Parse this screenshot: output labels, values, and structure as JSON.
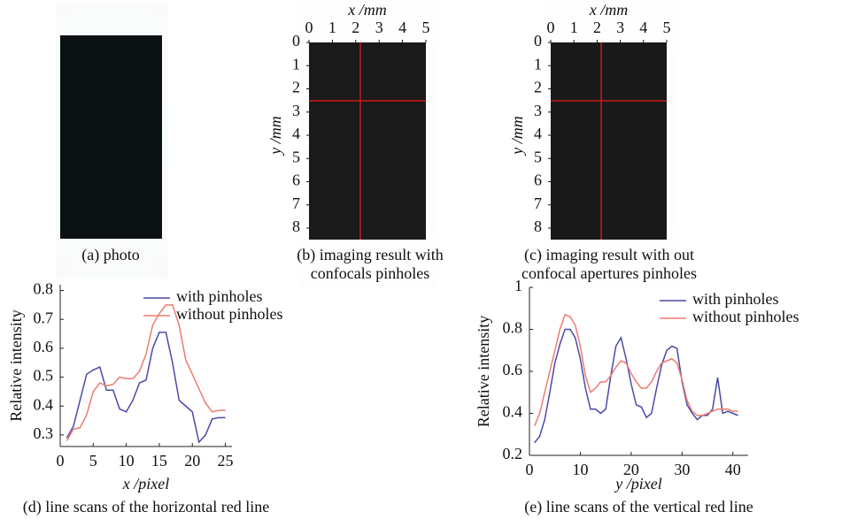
{
  "image_panels": [
    {
      "caption": [
        "(a) photo"
      ]
    },
    {
      "xlabel": "x /mm",
      "ylabel": "y /mm",
      "xticks": [
        0,
        1,
        2,
        3,
        4,
        5
      ],
      "yticks": [
        0,
        1,
        2,
        3,
        4,
        5,
        6,
        7,
        8
      ],
      "caption": [
        "(b) imaging result with",
        "confocals pinholes"
      ]
    },
    {
      "xlabel": "x /mm",
      "ylabel": "y /mm",
      "xticks": [
        0,
        1,
        2,
        3,
        4,
        5
      ],
      "yticks": [
        0,
        1,
        2,
        3,
        4,
        5,
        6,
        7,
        8
      ],
      "caption": [
        "(c) imaging result with out",
        "confocal apertures pinholes"
      ]
    }
  ],
  "chart_data": [
    {
      "type": "line",
      "caption": "(d) line scans of the horizontal red line",
      "x_label": "x /pixel",
      "y_label": "Relative intensity",
      "x": [
        1,
        2,
        3,
        4,
        5,
        6,
        7,
        8,
        9,
        10,
        11,
        12,
        13,
        14,
        15,
        16,
        17,
        18,
        19,
        20,
        21,
        22,
        23,
        24,
        25
      ],
      "series": [
        {
          "name": "with pinholes",
          "color": "#4a4aa8",
          "values": [
            0.29,
            0.33,
            0.42,
            0.51,
            0.525,
            0.535,
            0.455,
            0.455,
            0.39,
            0.38,
            0.42,
            0.48,
            0.49,
            0.6,
            0.655,
            0.655,
            0.55,
            0.42,
            0.4,
            0.38,
            0.275,
            0.3,
            0.355,
            0.36,
            0.36
          ]
        },
        {
          "name": "without pinholes",
          "color": "#ee7b70",
          "values": [
            0.28,
            0.32,
            0.325,
            0.37,
            0.45,
            0.48,
            0.47,
            0.475,
            0.5,
            0.495,
            0.495,
            0.52,
            0.58,
            0.68,
            0.72,
            0.75,
            0.75,
            0.68,
            0.56,
            0.51,
            0.46,
            0.41,
            0.38,
            0.385,
            0.385
          ]
        }
      ],
      "xlim": [
        0,
        26
      ],
      "xticks": [
        0,
        5,
        10,
        15,
        20,
        25
      ],
      "ylim": [
        0.26,
        0.82
      ],
      "yticks": [
        0.3,
        0.4,
        0.5,
        0.6,
        0.7,
        0.8
      ],
      "legend": "upper right"
    },
    {
      "type": "line",
      "caption": "(e) line scans of the vertical red line",
      "x_label": "y /pixel",
      "y_label": "Relative intensity",
      "x": [
        1,
        2,
        3,
        4,
        5,
        6,
        7,
        8,
        9,
        10,
        11,
        12,
        13,
        14,
        15,
        16,
        17,
        18,
        19,
        20,
        21,
        22,
        23,
        24,
        25,
        26,
        27,
        28,
        29,
        30,
        31,
        32,
        33,
        34,
        35,
        36,
        37,
        38,
        39,
        40,
        41
      ],
      "series": [
        {
          "name": "with pinholes",
          "color": "#4a4aa8",
          "values": [
            0.26,
            0.29,
            0.37,
            0.5,
            0.64,
            0.73,
            0.8,
            0.8,
            0.76,
            0.66,
            0.52,
            0.42,
            0.42,
            0.4,
            0.42,
            0.58,
            0.72,
            0.76,
            0.66,
            0.54,
            0.44,
            0.43,
            0.38,
            0.4,
            0.52,
            0.63,
            0.7,
            0.72,
            0.71,
            0.55,
            0.44,
            0.4,
            0.37,
            0.39,
            0.39,
            0.42,
            0.57,
            0.4,
            0.41,
            0.4,
            0.39
          ]
        },
        {
          "name": "without pinholes",
          "color": "#ee7b70",
          "values": [
            0.34,
            0.4,
            0.5,
            0.6,
            0.7,
            0.8,
            0.87,
            0.86,
            0.82,
            0.72,
            0.58,
            0.5,
            0.52,
            0.55,
            0.55,
            0.58,
            0.62,
            0.65,
            0.64,
            0.59,
            0.55,
            0.52,
            0.52,
            0.55,
            0.6,
            0.64,
            0.65,
            0.66,
            0.64,
            0.56,
            0.46,
            0.41,
            0.39,
            0.39,
            0.4,
            0.41,
            0.42,
            0.42,
            0.42,
            0.41,
            0.41
          ]
        }
      ],
      "xlim": [
        0,
        43
      ],
      "xticks": [
        0,
        10,
        20,
        30,
        40
      ],
      "ylim": [
        0.2,
        1
      ],
      "yticks": [
        0.2,
        0.4,
        0.6,
        0.8,
        1
      ],
      "legend": "upper right"
    }
  ]
}
